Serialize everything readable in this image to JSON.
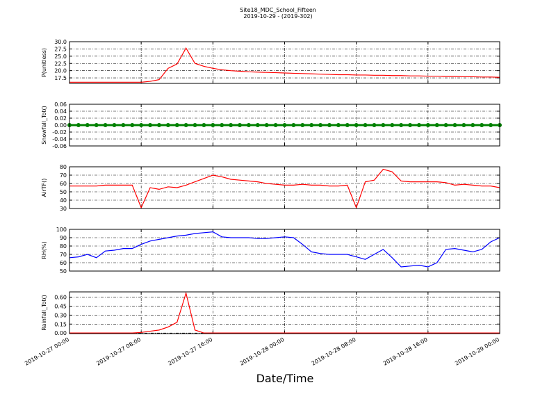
{
  "chart_data": [
    {
      "type": "line",
      "title": "Site18_MDC_School_Fifteen",
      "subtitle": "2019-10-29 - (2019-302)",
      "ylabel": "P(unitless)",
      "color": "#ff0000",
      "grid": true,
      "xlim": [
        "2019-10-27 00:00",
        "2019-10-29 00:00"
      ],
      "xticks": [
        "2019-10-27 00:00",
        "2019-10-27 08:00",
        "2019-10-27 16:00",
        "2019-10-28 00:00",
        "2019-10-28 08:00",
        "2019-10-28 16:00",
        "2019-10-29 00:00"
      ],
      "ylim": [
        15.6,
        30
      ],
      "yticks": [
        17.5,
        {
          "value": 20,
          "label": "20.0"
        },
        22.5,
        {
          "value": 25,
          "label": "25.0"
        },
        27.5,
        {
          "value": 30,
          "label": "30.0"
        }
      ],
      "x": [
        "2019-10-27 00:00",
        "2019-10-27 01:00",
        "2019-10-27 02:00",
        "2019-10-27 03:00",
        "2019-10-27 04:00",
        "2019-10-27 05:00",
        "2019-10-27 06:00",
        "2019-10-27 07:00",
        "2019-10-27 08:00",
        "2019-10-27 09:00",
        "2019-10-27 10:00",
        "2019-10-27 11:00",
        "2019-10-27 12:00",
        "2019-10-27 13:00",
        "2019-10-27 14:00",
        "2019-10-27 15:00",
        "2019-10-27 16:00",
        "2019-10-27 17:00",
        "2019-10-27 18:00",
        "2019-10-27 19:00",
        "2019-10-27 20:00",
        "2019-10-27 21:00",
        "2019-10-27 22:00",
        "2019-10-27 23:00",
        "2019-10-28 00:00",
        "2019-10-28 01:00",
        "2019-10-28 02:00",
        "2019-10-28 03:00",
        "2019-10-28 04:00",
        "2019-10-28 05:00",
        "2019-10-28 06:00",
        "2019-10-28 07:00",
        "2019-10-28 08:00",
        "2019-10-28 09:00",
        "2019-10-28 10:00",
        "2019-10-28 11:00",
        "2019-10-28 12:00",
        "2019-10-28 13:00",
        "2019-10-28 14:00",
        "2019-10-28 15:00",
        "2019-10-28 16:00",
        "2019-10-28 17:00",
        "2019-10-28 18:00",
        "2019-10-28 19:00",
        "2019-10-28 20:00",
        "2019-10-28 21:00",
        "2019-10-28 22:00",
        "2019-10-28 23:00",
        "2019-10-29 00:00"
      ],
      "values": [
        16.0,
        16.0,
        16.0,
        16.0,
        16.0,
        16.0,
        16.0,
        16.0,
        16.0,
        16.3,
        16.9,
        20.8,
        22.3,
        27.8,
        22.5,
        21.5,
        20.8,
        20.3,
        20.0,
        19.8,
        19.6,
        19.5,
        19.4,
        19.3,
        19.2,
        19.1,
        19.0,
        18.9,
        18.8,
        18.7,
        18.6,
        18.6,
        18.5,
        18.5,
        18.4,
        18.4,
        18.3,
        18.3,
        18.2,
        18.2,
        18.1,
        18.1,
        18.0,
        18.0,
        17.9,
        17.9,
        17.8,
        17.8,
        17.7
      ]
    },
    {
      "type": "line",
      "ylabel": "Snowfall_Tot()",
      "color": "#008000",
      "marker": true,
      "grid": true,
      "xlim": [
        "2019-10-27 00:00",
        "2019-10-29 00:00"
      ],
      "xticks": [
        "2019-10-27 00:00",
        "2019-10-27 08:00",
        "2019-10-27 16:00",
        "2019-10-28 00:00",
        "2019-10-28 08:00",
        "2019-10-28 16:00",
        "2019-10-29 00:00"
      ],
      "ylim": [
        -0.06,
        0.06
      ],
      "yticks": [
        -0.06,
        -0.04,
        -0.02,
        {
          "value": 0,
          "label": "0.00"
        },
        0.02,
        0.04,
        0.06
      ],
      "x": [
        "2019-10-27 00:00",
        "2019-10-27 01:00",
        "2019-10-27 02:00",
        "2019-10-27 03:00",
        "2019-10-27 04:00",
        "2019-10-27 05:00",
        "2019-10-27 06:00",
        "2019-10-27 07:00",
        "2019-10-27 08:00",
        "2019-10-27 09:00",
        "2019-10-27 10:00",
        "2019-10-27 11:00",
        "2019-10-27 12:00",
        "2019-10-27 13:00",
        "2019-10-27 14:00",
        "2019-10-27 15:00",
        "2019-10-27 16:00",
        "2019-10-27 17:00",
        "2019-10-27 18:00",
        "2019-10-27 19:00",
        "2019-10-27 20:00",
        "2019-10-27 21:00",
        "2019-10-27 22:00",
        "2019-10-27 23:00",
        "2019-10-28 00:00",
        "2019-10-28 01:00",
        "2019-10-28 02:00",
        "2019-10-28 03:00",
        "2019-10-28 04:00",
        "2019-10-28 05:00",
        "2019-10-28 06:00",
        "2019-10-28 07:00",
        "2019-10-28 08:00",
        "2019-10-28 09:00",
        "2019-10-28 10:00",
        "2019-10-28 11:00",
        "2019-10-28 12:00",
        "2019-10-28 13:00",
        "2019-10-28 14:00",
        "2019-10-28 15:00",
        "2019-10-28 16:00",
        "2019-10-28 17:00",
        "2019-10-28 18:00",
        "2019-10-28 19:00",
        "2019-10-28 20:00",
        "2019-10-28 21:00",
        "2019-10-28 22:00",
        "2019-10-28 23:00",
        "2019-10-29 00:00"
      ],
      "values": [
        0,
        0,
        0,
        0,
        0,
        0,
        0,
        0,
        0,
        0,
        0,
        0,
        0,
        0,
        0,
        0,
        0,
        0,
        0,
        0,
        0,
        0,
        0,
        0,
        0,
        0,
        0,
        0,
        0,
        0,
        0,
        0,
        0,
        0,
        0,
        0,
        0,
        0,
        0,
        0,
        0,
        0,
        0,
        0,
        0,
        0,
        0,
        0,
        0
      ]
    },
    {
      "type": "line",
      "ylabel": "AirTF()",
      "color": "#ff0000",
      "grid": true,
      "xlim": [
        "2019-10-27 00:00",
        "2019-10-29 00:00"
      ],
      "xticks": [
        "2019-10-27 00:00",
        "2019-10-27 08:00",
        "2019-10-27 16:00",
        "2019-10-28 00:00",
        "2019-10-28 08:00",
        "2019-10-28 16:00",
        "2019-10-29 00:00"
      ],
      "ylim": [
        30,
        80
      ],
      "yticks": [
        30,
        40,
        50,
        60,
        70,
        80
      ],
      "x": [
        "2019-10-27 00:00",
        "2019-10-27 01:00",
        "2019-10-27 02:00",
        "2019-10-27 03:00",
        "2019-10-27 04:00",
        "2019-10-27 05:00",
        "2019-10-27 06:00",
        "2019-10-27 07:00",
        "2019-10-27 08:00",
        "2019-10-27 09:00",
        "2019-10-27 10:00",
        "2019-10-27 11:00",
        "2019-10-27 12:00",
        "2019-10-27 13:00",
        "2019-10-27 14:00",
        "2019-10-27 15:00",
        "2019-10-27 16:00",
        "2019-10-27 17:00",
        "2019-10-27 18:00",
        "2019-10-27 19:00",
        "2019-10-27 20:00",
        "2019-10-27 21:00",
        "2019-10-27 22:00",
        "2019-10-27 23:00",
        "2019-10-28 00:00",
        "2019-10-28 01:00",
        "2019-10-28 02:00",
        "2019-10-28 03:00",
        "2019-10-28 04:00",
        "2019-10-28 05:00",
        "2019-10-28 06:00",
        "2019-10-28 07:00",
        "2019-10-28 08:00",
        "2019-10-28 09:00",
        "2019-10-28 10:00",
        "2019-10-28 11:00",
        "2019-10-28 12:00",
        "2019-10-28 13:00",
        "2019-10-28 14:00",
        "2019-10-28 15:00",
        "2019-10-28 16:00",
        "2019-10-28 17:00",
        "2019-10-28 18:00",
        "2019-10-28 19:00",
        "2019-10-28 20:00",
        "2019-10-28 21:00",
        "2019-10-28 22:00",
        "2019-10-28 23:00",
        "2019-10-29 00:00"
      ],
      "values": [
        57,
        57,
        57,
        57,
        58,
        58,
        58,
        58,
        31,
        55,
        53,
        56,
        55,
        58,
        62,
        66,
        70,
        68,
        65,
        64,
        63,
        62,
        60,
        59,
        58,
        58,
        59,
        58,
        58,
        57,
        57,
        58,
        31,
        62,
        64,
        77,
        74,
        63,
        62,
        62,
        62,
        62,
        61,
        58,
        59,
        58,
        57,
        57,
        55
      ]
    },
    {
      "type": "line",
      "ylabel": "RH(%)",
      "color": "#0000ff",
      "grid": true,
      "xlim": [
        "2019-10-27 00:00",
        "2019-10-29 00:00"
      ],
      "xticks": [
        "2019-10-27 00:00",
        "2019-10-27 08:00",
        "2019-10-27 16:00",
        "2019-10-28 00:00",
        "2019-10-28 08:00",
        "2019-10-28 16:00",
        "2019-10-29 00:00"
      ],
      "ylim": [
        50,
        100
      ],
      "yticks": [
        50,
        60,
        70,
        80,
        90,
        100
      ],
      "x": [
        "2019-10-27 00:00",
        "2019-10-27 01:00",
        "2019-10-27 02:00",
        "2019-10-27 03:00",
        "2019-10-27 04:00",
        "2019-10-27 05:00",
        "2019-10-27 06:00",
        "2019-10-27 07:00",
        "2019-10-27 08:00",
        "2019-10-27 09:00",
        "2019-10-27 10:00",
        "2019-10-27 11:00",
        "2019-10-27 12:00",
        "2019-10-27 13:00",
        "2019-10-27 14:00",
        "2019-10-27 15:00",
        "2019-10-27 16:00",
        "2019-10-27 17:00",
        "2019-10-27 18:00",
        "2019-10-27 19:00",
        "2019-10-27 20:00",
        "2019-10-27 21:00",
        "2019-10-27 22:00",
        "2019-10-27 23:00",
        "2019-10-28 00:00",
        "2019-10-28 01:00",
        "2019-10-28 02:00",
        "2019-10-28 03:00",
        "2019-10-28 04:00",
        "2019-10-28 05:00",
        "2019-10-28 06:00",
        "2019-10-28 07:00",
        "2019-10-28 08:00",
        "2019-10-28 09:00",
        "2019-10-28 10:00",
        "2019-10-28 11:00",
        "2019-10-28 12:00",
        "2019-10-28 13:00",
        "2019-10-28 14:00",
        "2019-10-28 15:00",
        "2019-10-28 16:00",
        "2019-10-28 17:00",
        "2019-10-28 18:00",
        "2019-10-28 19:00",
        "2019-10-28 20:00",
        "2019-10-28 21:00",
        "2019-10-28 22:00",
        "2019-10-28 23:00",
        "2019-10-29 00:00"
      ],
      "values": [
        66,
        67,
        70,
        66,
        74,
        75,
        77,
        77,
        82,
        86,
        88,
        90,
        92,
        93,
        95,
        96,
        97,
        91,
        90,
        90,
        90,
        89,
        89,
        90,
        91,
        90,
        82,
        73,
        71,
        70,
        70,
        70,
        67,
        64,
        70,
        76,
        66,
        55,
        56,
        57,
        55,
        60,
        76,
        77,
        75,
        73,
        76,
        85,
        90
      ]
    },
    {
      "type": "line",
      "ylabel": "Rainfall_Tot()",
      "xlabel": "Date/Time",
      "color": "#ff0000",
      "grid": true,
      "xlim": [
        "2019-10-27 00:00",
        "2019-10-29 00:00"
      ],
      "xticks": [
        "2019-10-27 00:00",
        "2019-10-27 08:00",
        "2019-10-27 16:00",
        "2019-10-28 00:00",
        "2019-10-28 08:00",
        "2019-10-28 16:00",
        "2019-10-29 00:00"
      ],
      "ylim": [
        -0.01,
        0.69
      ],
      "yticks": [
        {
          "value": 0,
          "label": "0.00"
        },
        0.15,
        {
          "value": 0.3,
          "label": "0.30"
        },
        0.45,
        {
          "value": 0.6,
          "label": "0.60"
        }
      ],
      "x": [
        "2019-10-27 00:00",
        "2019-10-27 01:00",
        "2019-10-27 02:00",
        "2019-10-27 03:00",
        "2019-10-27 04:00",
        "2019-10-27 05:00",
        "2019-10-27 06:00",
        "2019-10-27 07:00",
        "2019-10-27 08:00",
        "2019-10-27 09:00",
        "2019-10-27 10:00",
        "2019-10-27 11:00",
        "2019-10-27 12:00",
        "2019-10-27 13:00",
        "2019-10-27 14:00",
        "2019-10-27 15:00",
        "2019-10-27 16:00",
        "2019-10-27 17:00",
        "2019-10-27 18:00",
        "2019-10-27 19:00",
        "2019-10-27 20:00",
        "2019-10-27 21:00",
        "2019-10-27 22:00",
        "2019-10-27 23:00",
        "2019-10-28 00:00",
        "2019-10-28 01:00",
        "2019-10-28 02:00",
        "2019-10-28 03:00",
        "2019-10-28 04:00",
        "2019-10-28 05:00",
        "2019-10-28 06:00",
        "2019-10-28 07:00",
        "2019-10-28 08:00",
        "2019-10-28 09:00",
        "2019-10-28 10:00",
        "2019-10-28 11:00",
        "2019-10-28 12:00",
        "2019-10-28 13:00",
        "2019-10-28 14:00",
        "2019-10-28 15:00",
        "2019-10-28 16:00",
        "2019-10-28 17:00",
        "2019-10-28 18:00",
        "2019-10-28 19:00",
        "2019-10-28 20:00",
        "2019-10-28 21:00",
        "2019-10-28 22:00",
        "2019-10-28 23:00",
        "2019-10-29 00:00"
      ],
      "values": [
        0,
        0,
        0,
        0,
        0,
        0,
        0,
        0,
        0.01,
        0.03,
        0.05,
        0.1,
        0.18,
        0.67,
        0.05,
        0,
        0,
        0,
        0,
        0,
        0,
        0,
        0,
        0,
        0,
        0,
        0,
        0,
        0,
        0,
        0,
        0,
        0,
        0,
        0,
        0,
        0,
        0,
        0,
        0,
        0,
        0,
        0,
        0,
        0,
        0,
        0,
        0,
        0
      ]
    }
  ]
}
